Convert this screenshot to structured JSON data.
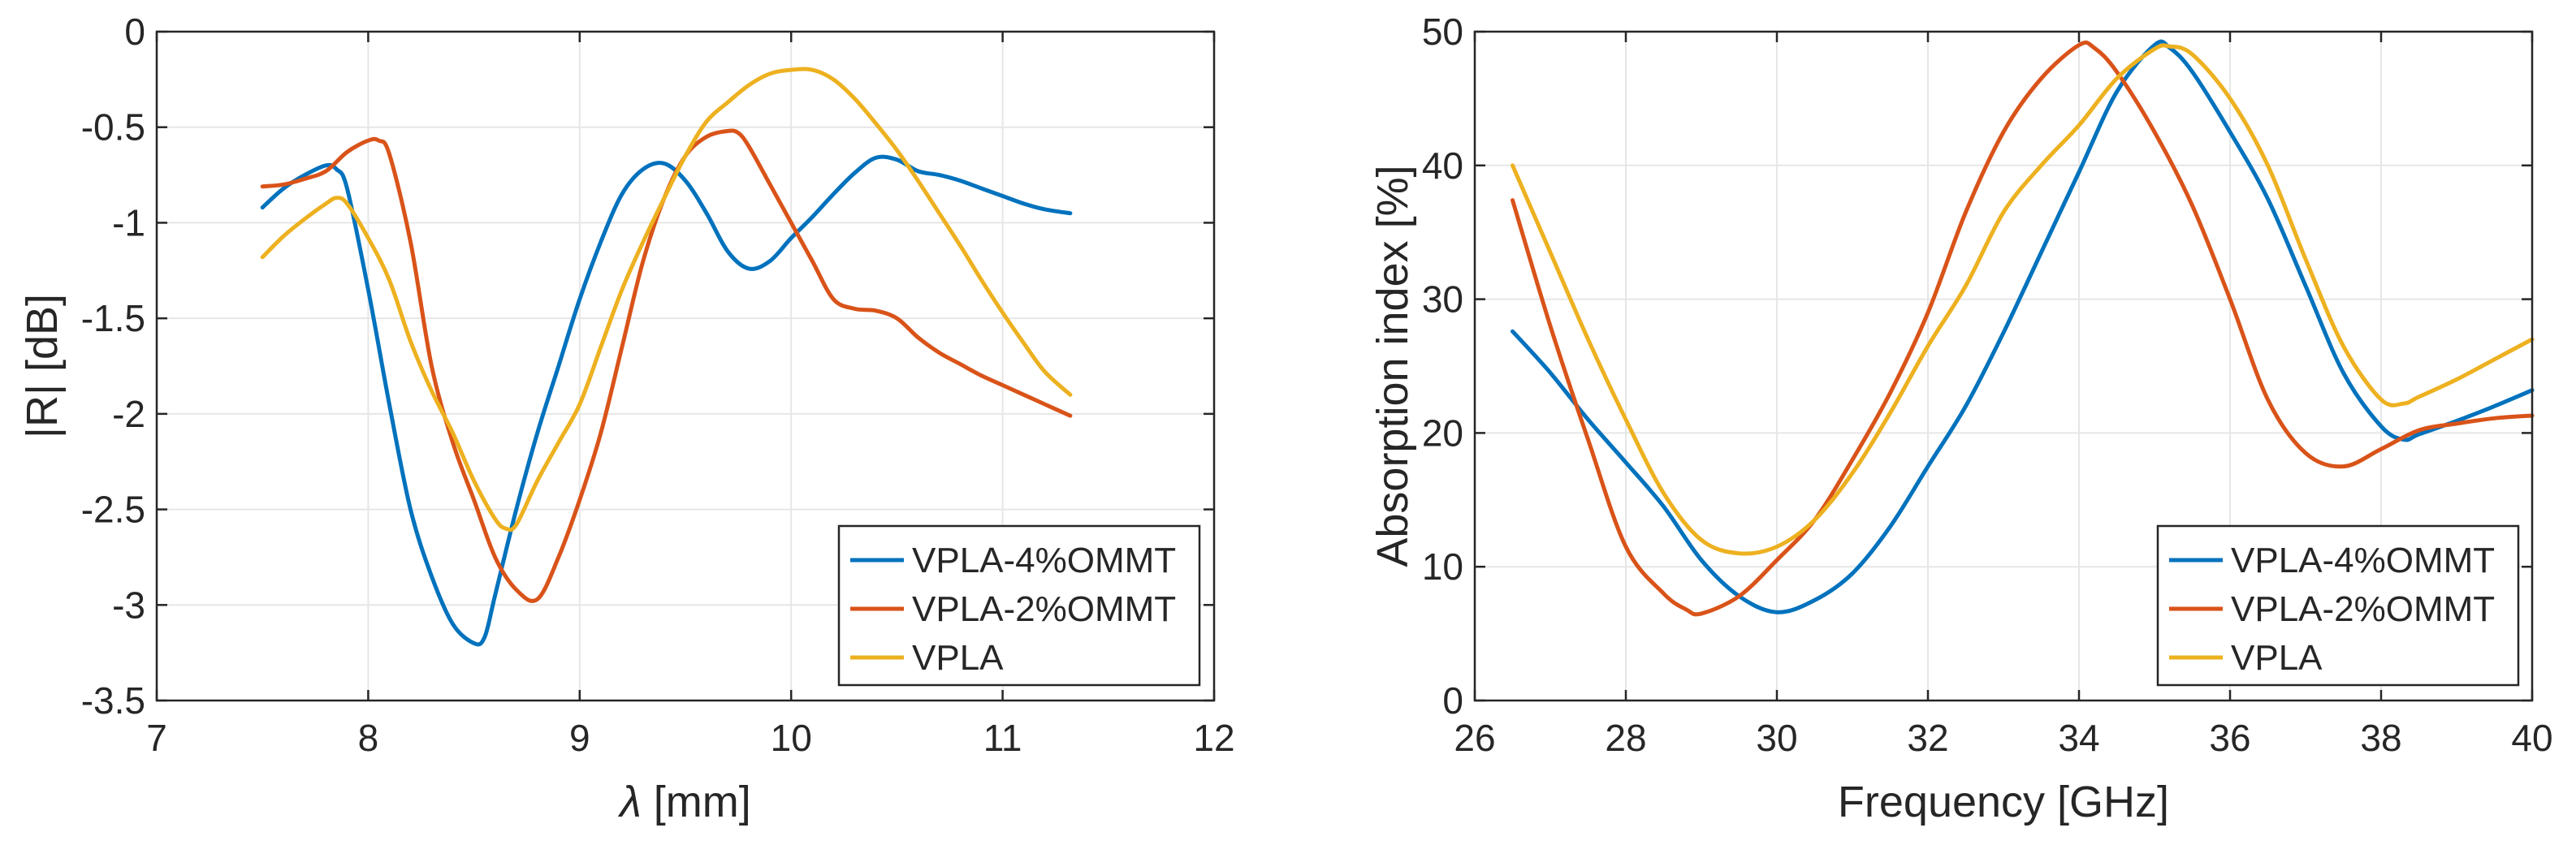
{
  "chart_data": [
    {
      "type": "line",
      "title": "",
      "xlabel_symbol": "λ",
      "xlabel_unit": " [mm]",
      "ylabel": "|R| [dB]",
      "xlim": [
        7,
        12
      ],
      "ylim": [
        -3.5,
        0
      ],
      "xticks": [
        7,
        8,
        9,
        10,
        11,
        12
      ],
      "yticks": [
        0,
        -0.5,
        -1,
        -1.5,
        -2,
        -2.5,
        -3,
        -3.5
      ],
      "xtick_labels": [
        "7",
        "8",
        "9",
        "10",
        "11",
        "12"
      ],
      "ytick_labels": [
        "0",
        "-0.5",
        "-1",
        "-1.5",
        "-2",
        "-2.5",
        "-3",
        "-3.5"
      ],
      "grid": true,
      "legend_position": "bottom-right",
      "series": [
        {
          "name": "VPLA-4%OMMT",
          "color": "#0072BD",
          "x": [
            7.5,
            7.6,
            7.7,
            7.8,
            7.85,
            7.9,
            8.0,
            8.1,
            8.2,
            8.3,
            8.4,
            8.5,
            8.55,
            8.6,
            8.7,
            8.8,
            8.9,
            9.0,
            9.1,
            9.2,
            9.3,
            9.4,
            9.5,
            9.6,
            9.7,
            9.8,
            9.9,
            10.0,
            10.1,
            10.2,
            10.3,
            10.4,
            10.5,
            10.6,
            10.7,
            10.8,
            10.9,
            11.0,
            11.1,
            11.2,
            11.32
          ],
          "y": [
            -0.92,
            -0.82,
            -0.75,
            -0.7,
            -0.72,
            -0.82,
            -1.35,
            -1.95,
            -2.5,
            -2.85,
            -3.1,
            -3.2,
            -3.17,
            -2.95,
            -2.5,
            -2.1,
            -1.75,
            -1.4,
            -1.1,
            -0.85,
            -0.72,
            -0.69,
            -0.78,
            -0.95,
            -1.15,
            -1.24,
            -1.2,
            -1.08,
            -0.97,
            -0.85,
            -0.74,
            -0.66,
            -0.67,
            -0.73,
            -0.75,
            -0.78,
            -0.82,
            -0.86,
            -0.9,
            -0.93,
            -0.95
          ]
        },
        {
          "name": "VPLA-2%OMMT",
          "color": "#D95319",
          "x": [
            7.5,
            7.6,
            7.7,
            7.8,
            7.9,
            8.0,
            8.05,
            8.1,
            8.2,
            8.3,
            8.4,
            8.5,
            8.6,
            8.7,
            8.8,
            8.9,
            9.0,
            9.1,
            9.2,
            9.3,
            9.4,
            9.5,
            9.6,
            9.7,
            9.75,
            9.8,
            9.9,
            10.0,
            10.1,
            10.2,
            10.3,
            10.4,
            10.5,
            10.6,
            10.7,
            10.8,
            10.9,
            11.0,
            11.1,
            11.2,
            11.32
          ],
          "y": [
            -0.81,
            -0.8,
            -0.77,
            -0.73,
            -0.63,
            -0.57,
            -0.57,
            -0.64,
            -1.1,
            -1.75,
            -2.15,
            -2.45,
            -2.75,
            -2.92,
            -2.97,
            -2.75,
            -2.45,
            -2.1,
            -1.65,
            -1.2,
            -0.87,
            -0.65,
            -0.55,
            -0.52,
            -0.53,
            -0.6,
            -0.8,
            -1.0,
            -1.2,
            -1.4,
            -1.45,
            -1.46,
            -1.5,
            -1.6,
            -1.68,
            -1.74,
            -1.8,
            -1.85,
            -1.9,
            -1.95,
            -2.01
          ]
        },
        {
          "name": "VPLA",
          "color": "#EDB120",
          "x": [
            7.5,
            7.6,
            7.7,
            7.8,
            7.85,
            7.9,
            8.0,
            8.1,
            8.2,
            8.3,
            8.4,
            8.5,
            8.6,
            8.65,
            8.7,
            8.8,
            8.9,
            9.0,
            9.1,
            9.2,
            9.3,
            9.4,
            9.5,
            9.6,
            9.7,
            9.8,
            9.9,
            10.0,
            10.1,
            10.2,
            10.3,
            10.4,
            10.5,
            10.6,
            10.7,
            10.8,
            10.9,
            11.0,
            11.1,
            11.2,
            11.32
          ],
          "y": [
            -1.18,
            -1.07,
            -0.98,
            -0.9,
            -0.87,
            -0.9,
            -1.08,
            -1.3,
            -1.62,
            -1.88,
            -2.1,
            -2.35,
            -2.55,
            -2.6,
            -2.58,
            -2.35,
            -2.15,
            -1.95,
            -1.65,
            -1.35,
            -1.1,
            -0.87,
            -0.65,
            -0.47,
            -0.37,
            -0.28,
            -0.22,
            -0.2,
            -0.2,
            -0.25,
            -0.35,
            -0.48,
            -0.62,
            -0.78,
            -0.95,
            -1.12,
            -1.3,
            -1.47,
            -1.63,
            -1.78,
            -1.9
          ]
        }
      ]
    },
    {
      "type": "line",
      "title": "",
      "xlabel": "Frequency [GHz]",
      "ylabel": "Absorption index [%]",
      "xlim": [
        26,
        40
      ],
      "ylim": [
        0,
        50
      ],
      "xticks": [
        26,
        28,
        30,
        32,
        34,
        36,
        38,
        40
      ],
      "yticks": [
        0,
        10,
        20,
        30,
        40,
        50
      ],
      "xtick_labels": [
        "26",
        "28",
        "30",
        "32",
        "34",
        "36",
        "38",
        "40"
      ],
      "ytick_labels": [
        "0",
        "10",
        "20",
        "30",
        "40",
        "50"
      ],
      "grid": true,
      "legend_position": "bottom-right",
      "series": [
        {
          "name": "VPLA-4%OMMT",
          "color": "#0072BD",
          "x": [
            26.5,
            27.0,
            27.5,
            28.0,
            28.5,
            29.0,
            29.5,
            30.0,
            30.5,
            31.0,
            31.5,
            32.0,
            32.5,
            33.0,
            33.5,
            34.0,
            34.5,
            35.0,
            35.2,
            35.5,
            36.0,
            36.5,
            37.0,
            37.5,
            38.0,
            38.3,
            38.5,
            39.0,
            39.5,
            40.0
          ],
          "y": [
            27.6,
            24.5,
            21.0,
            17.8,
            14.5,
            10.5,
            7.8,
            6.6,
            7.5,
            9.5,
            13.0,
            17.5,
            22.0,
            27.5,
            33.5,
            39.5,
            45.5,
            49.0,
            48.8,
            47.0,
            42.5,
            37.5,
            31.0,
            24.5,
            20.5,
            19.5,
            19.9,
            20.9,
            22.0,
            23.2
          ]
        },
        {
          "name": "VPLA-2%OMMT",
          "color": "#D95319",
          "x": [
            26.5,
            27.0,
            27.5,
            28.0,
            28.5,
            28.8,
            29.0,
            29.5,
            30.0,
            30.5,
            31.0,
            31.5,
            32.0,
            32.5,
            33.0,
            33.5,
            34.0,
            34.2,
            34.5,
            35.0,
            35.5,
            36.0,
            36.5,
            37.0,
            37.5,
            38.0,
            38.5,
            39.0,
            39.5,
            40.0
          ],
          "y": [
            37.4,
            28.0,
            19.5,
            11.5,
            8.0,
            6.8,
            6.5,
            7.8,
            10.5,
            13.5,
            18.0,
            23.0,
            29.0,
            36.5,
            42.5,
            46.5,
            49.0,
            48.8,
            47.0,
            42.5,
            37.0,
            30.0,
            22.5,
            18.5,
            17.5,
            18.8,
            20.2,
            20.7,
            21.1,
            21.3
          ]
        },
        {
          "name": "VPLA",
          "color": "#EDB120",
          "x": [
            26.5,
            27.0,
            27.5,
            28.0,
            28.5,
            29.0,
            29.5,
            30.0,
            30.5,
            31.0,
            31.5,
            32.0,
            32.5,
            33.0,
            33.5,
            34.0,
            34.5,
            35.0,
            35.2,
            35.5,
            36.0,
            36.5,
            37.0,
            37.5,
            38.0,
            38.3,
            38.5,
            39.0,
            39.5,
            40.0
          ],
          "y": [
            40.0,
            33.5,
            27.0,
            21.0,
            15.5,
            12.0,
            11.0,
            11.5,
            13.5,
            17.0,
            21.5,
            26.5,
            31.0,
            36.5,
            40.0,
            43.0,
            46.5,
            48.7,
            48.9,
            48.3,
            45.0,
            40.0,
            33.0,
            26.5,
            22.5,
            22.2,
            22.7,
            24.0,
            25.5,
            27.0
          ]
        }
      ]
    }
  ]
}
